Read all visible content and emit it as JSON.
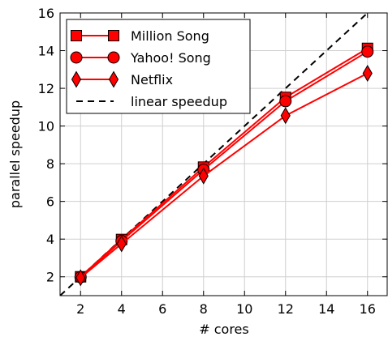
{
  "chart_data": {
    "type": "line",
    "title": "",
    "xlabel": "# cores",
    "ylabel": "parallel speedup",
    "xlim": [
      1,
      17
    ],
    "ylim": [
      1,
      16
    ],
    "x_ticks": [
      2,
      4,
      6,
      8,
      10,
      12,
      14,
      16
    ],
    "y_ticks": [
      2,
      4,
      6,
      8,
      10,
      12,
      14,
      16
    ],
    "grid": true,
    "legend_position": "top-left",
    "series": [
      {
        "name": "Million Song",
        "marker": "square",
        "color": "#ff0000",
        "x": [
          2,
          4,
          8,
          12,
          16
        ],
        "y": [
          2.0,
          3.98,
          7.82,
          11.52,
          14.12
        ]
      },
      {
        "name": "Yahoo! Song",
        "marker": "circle",
        "color": "#ff0000",
        "x": [
          2,
          4,
          8,
          12,
          16
        ],
        "y": [
          1.98,
          3.9,
          7.68,
          11.32,
          13.95
        ]
      },
      {
        "name": "Netflix",
        "marker": "diamond",
        "color": "#ff0000",
        "x": [
          2,
          4,
          8,
          12,
          16
        ],
        "y": [
          1.95,
          3.75,
          7.35,
          10.55,
          12.8
        ]
      }
    ],
    "reference_line": {
      "name": "linear speedup",
      "style": "dashed",
      "color": "#000000",
      "x": [
        1,
        17
      ],
      "y": [
        1,
        17
      ]
    }
  }
}
